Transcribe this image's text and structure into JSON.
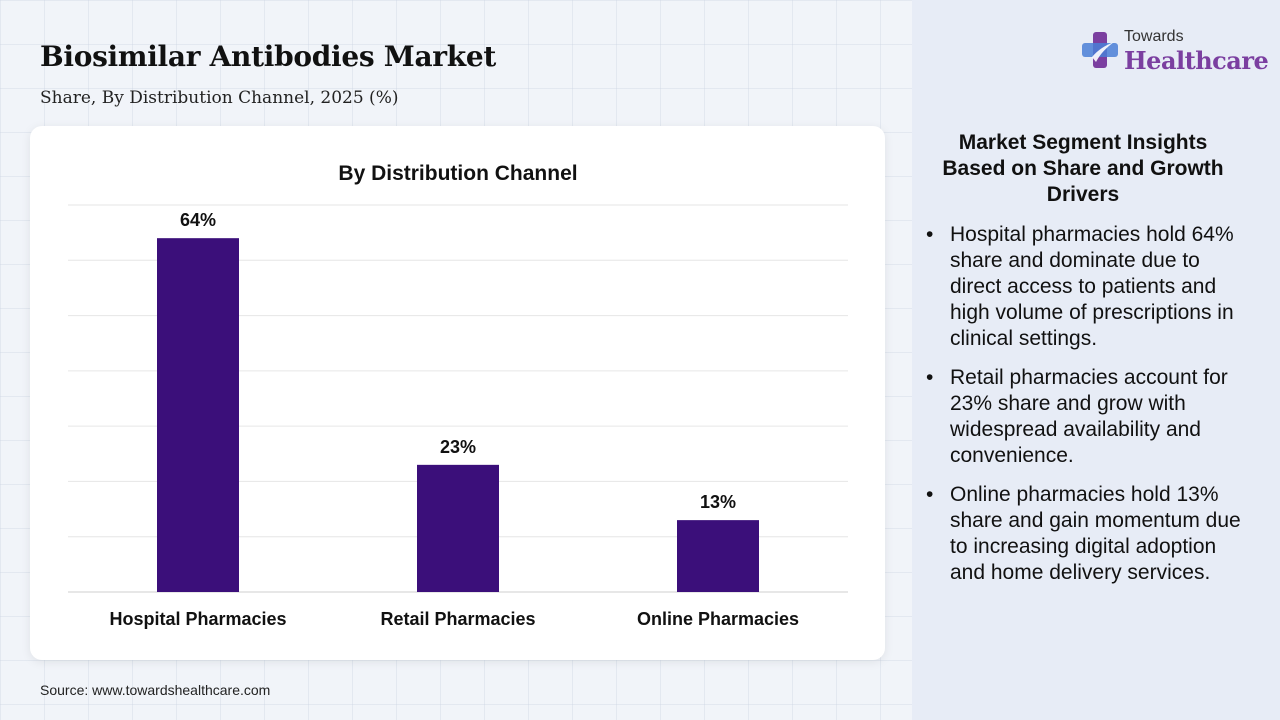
{
  "header": {
    "title": "Biosimilar Antibodies Market",
    "subtitle": "Share, By Distribution Channel, 2025 (%)"
  },
  "logo": {
    "top": "Towards",
    "bottom": "Healthcare",
    "colors": {
      "purple": "#7b3fa0",
      "blue": "#4a7fd6"
    }
  },
  "chart_data": {
    "type": "bar",
    "title": "By Distribution Channel",
    "categories": [
      "Hospital Pharmacies",
      "Retail Pharmacies",
      "Online Pharmacies"
    ],
    "values": [
      64,
      23,
      13
    ],
    "data_labels": [
      "64%",
      "23%",
      "13%"
    ],
    "xlabel": "",
    "ylabel": "",
    "ylim": [
      0,
      70
    ],
    "grid": true,
    "bar_color": "#3b0f7a"
  },
  "insights": {
    "title": "Market Segment Insights Based on Share and Growth Drivers",
    "items": [
      "Hospital pharmacies hold 64% share and dominate due to direct access to patients and high volume of prescriptions in clinical settings.",
      "Retail pharmacies account for 23% share and grow with widespread availability and convenience.",
      "Online pharmacies hold 13% share and gain momentum due to increasing digital adoption and home delivery services."
    ]
  },
  "footer": {
    "source": "Source: www.towardshealthcare.com"
  }
}
